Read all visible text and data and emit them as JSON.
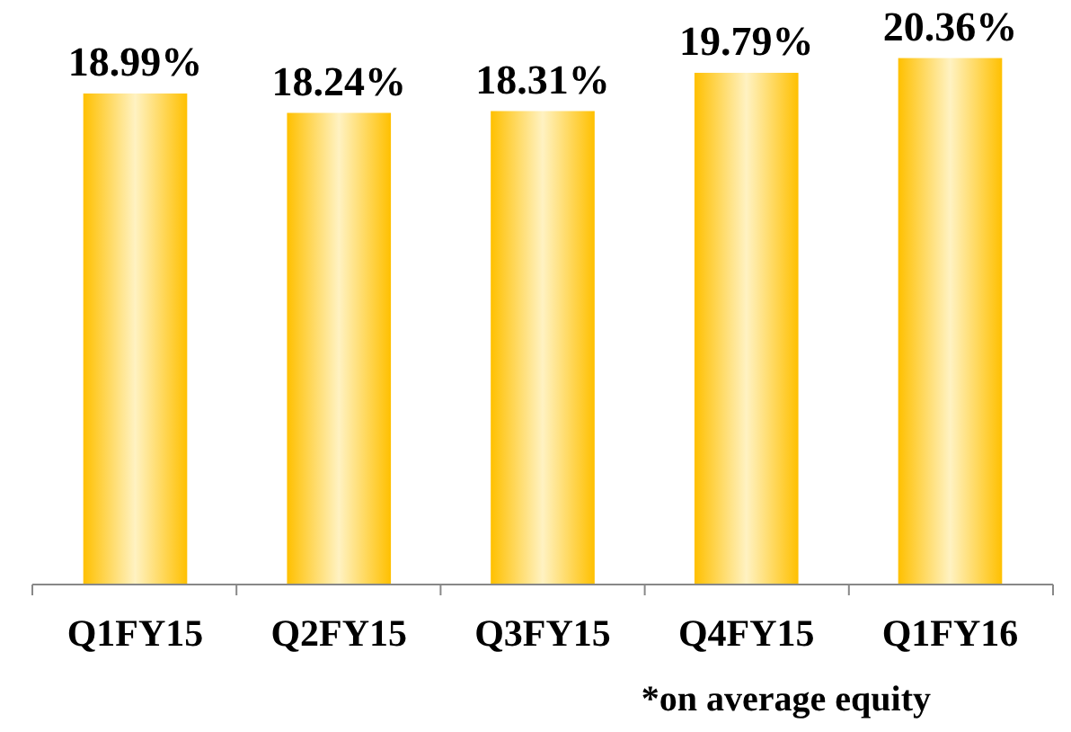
{
  "chart_data": {
    "type": "bar",
    "categories": [
      "Q1FY15",
      "Q2FY15",
      "Q3FY15",
      "Q4FY15",
      "Q1FY16"
    ],
    "values": [
      18.99,
      18.24,
      18.31,
      19.79,
      20.36
    ],
    "value_labels": [
      "18.99%",
      "18.24%",
      "18.31%",
      "19.79%",
      "20.36%"
    ],
    "color": "#ffc000",
    "tick_labels": "x",
    "annotations": [
      "*on average equity"
    ]
  }
}
